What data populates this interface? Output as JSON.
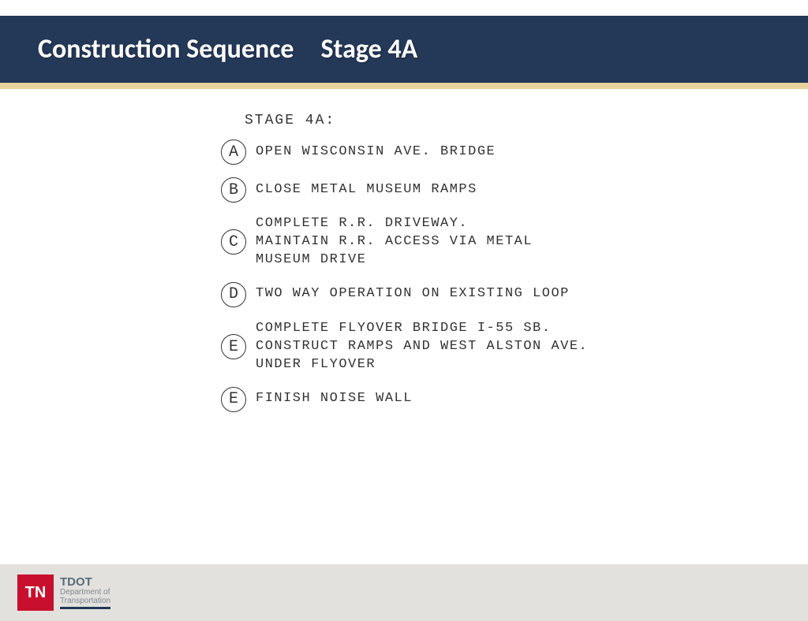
{
  "header": {
    "title": "Construction Sequence Stage 4A",
    "bg_color": "#243858",
    "text_color": "#ffffff",
    "accent_color": "#e6d29a",
    "title_fontsize": 34
  },
  "content": {
    "label": "STAGE 4A:",
    "font_family": "Courier New",
    "text_color": "#333333",
    "items": [
      {
        "marker": "A",
        "text": "OPEN WISCONSIN AVE. BRIDGE"
      },
      {
        "marker": "B",
        "text": "CLOSE METAL MUSEUM RAMPS"
      },
      {
        "marker": "C",
        "text": "COMPLETE R.R. DRIVEWAY.\nMAINTAIN R.R. ACCESS VIA METAL\nMUSEUM DRIVE"
      },
      {
        "marker": "D",
        "text": "TWO WAY OPERATION ON EXISTING LOOP"
      },
      {
        "marker": "E",
        "text": "COMPLETE FLYOVER BRIDGE I-55 SB.\nCONSTRUCT RAMPS AND WEST ALSTON AVE.\nUNDER FLYOVER"
      },
      {
        "marker": "E",
        "text": "FINISH NOISE WALL"
      }
    ]
  },
  "footer": {
    "bg_color": "#e2e1dd",
    "badge_text": "TN",
    "badge_bg": "#c8102e",
    "badge_fg": "#ffffff",
    "dept_abbr": "TDOT",
    "dept_line1": "Department of",
    "dept_line2": "Transportation",
    "underline_color": "#243858"
  }
}
